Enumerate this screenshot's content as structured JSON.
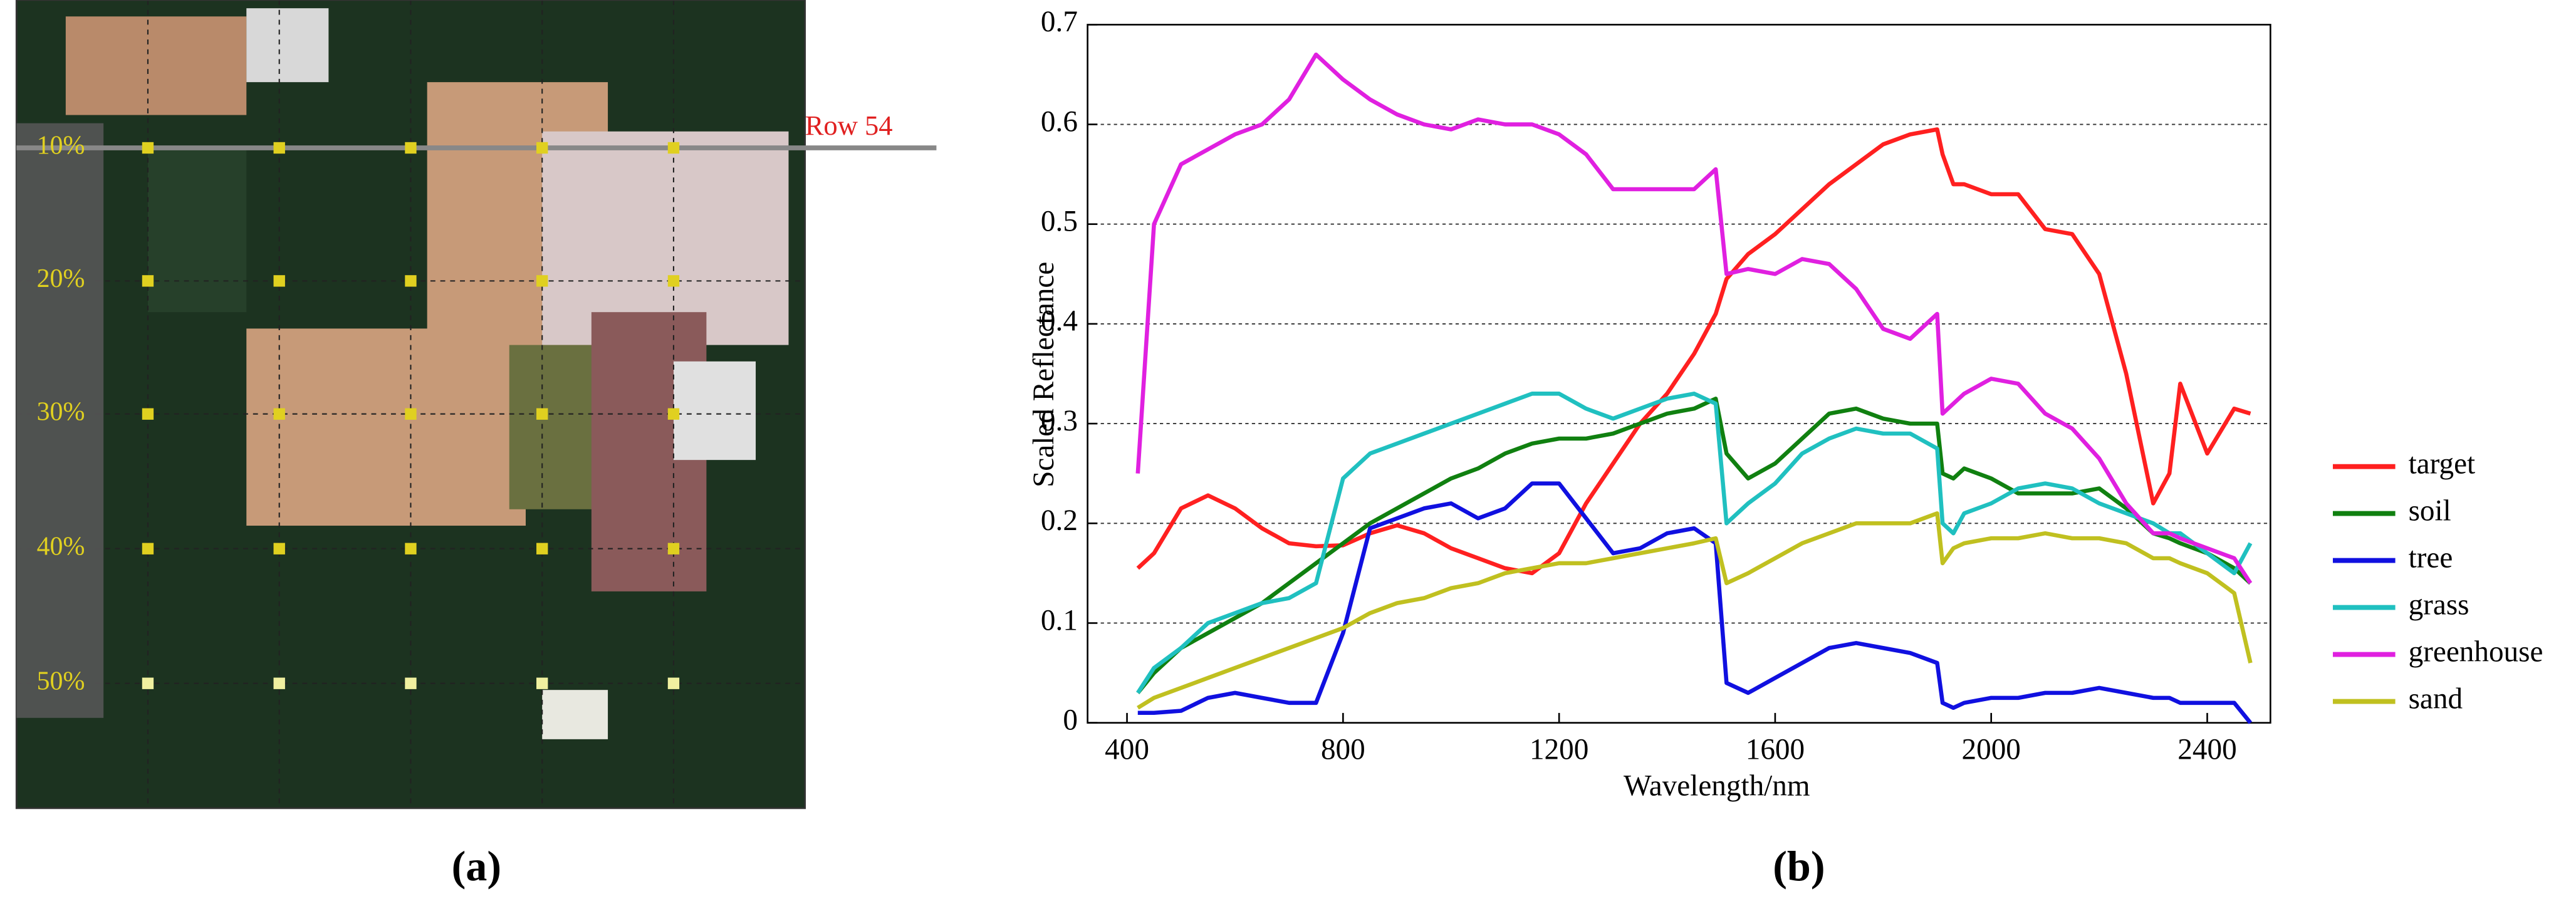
{
  "image_panel": {
    "row_label": "Row 54",
    "percent_labels": [
      "10%",
      "20%",
      "30%",
      "40%",
      "50%"
    ],
    "panel_label": "(a)"
  },
  "chart_data": {
    "type": "line",
    "panel_label": "(b)",
    "xlabel": "Wavelength/nm",
    "ylabel": "Scaled Reflectance",
    "xlim": [
      327,
      2517
    ],
    "xticks": [
      400,
      800,
      1200,
      1600,
      2000,
      2400
    ],
    "ylim": [
      0,
      0.7
    ],
    "yticks": [
      0,
      0.1,
      0.2,
      0.3,
      0.4,
      0.5,
      0.6,
      0.7
    ],
    "grid": true,
    "legend": "outside-right",
    "x": [
      420,
      450,
      500,
      550,
      600,
      650,
      700,
      750,
      800,
      850,
      900,
      950,
      1000,
      1050,
      1100,
      1150,
      1200,
      1250,
      1300,
      1350,
      1400,
      1450,
      1490,
      1510,
      1550,
      1600,
      1650,
      1700,
      1750,
      1800,
      1850,
      1900,
      1910,
      1930,
      1950,
      2000,
      2050,
      2100,
      2150,
      2200,
      2250,
      2300,
      2330,
      2350,
      2400,
      2450,
      2480
    ],
    "series": [
      {
        "name": "target",
        "color": "#ff2020",
        "values": [
          0.155,
          0.17,
          0.215,
          0.228,
          0.215,
          0.195,
          0.18,
          0.177,
          0.178,
          0.19,
          0.198,
          0.19,
          0.175,
          0.165,
          0.155,
          0.15,
          0.17,
          0.22,
          0.26,
          0.3,
          0.33,
          0.37,
          0.41,
          0.445,
          0.47,
          0.49,
          0.515,
          0.54,
          0.56,
          0.58,
          0.59,
          0.595,
          0.57,
          0.54,
          0.54,
          0.53,
          0.53,
          0.495,
          0.49,
          0.45,
          0.35,
          0.22,
          0.25,
          0.34,
          0.27,
          0.315,
          0.31
        ]
      },
      {
        "name": "soil",
        "color": "#108010",
        "values": [
          0.03,
          0.05,
          0.075,
          0.09,
          0.105,
          0.12,
          0.14,
          0.16,
          0.18,
          0.2,
          0.215,
          0.23,
          0.245,
          0.255,
          0.27,
          0.28,
          0.285,
          0.285,
          0.29,
          0.3,
          0.31,
          0.315,
          0.325,
          0.27,
          0.245,
          0.26,
          0.285,
          0.31,
          0.315,
          0.305,
          0.3,
          0.3,
          0.25,
          0.245,
          0.255,
          0.245,
          0.23,
          0.23,
          0.23,
          0.235,
          0.215,
          0.19,
          0.185,
          0.18,
          0.17,
          0.155,
          0.14
        ]
      },
      {
        "name": "tree",
        "color": "#1010e0",
        "values": [
          0.01,
          0.01,
          0.012,
          0.025,
          0.03,
          0.025,
          0.02,
          0.02,
          0.09,
          0.195,
          0.205,
          0.215,
          0.22,
          0.205,
          0.215,
          0.24,
          0.24,
          0.205,
          0.17,
          0.175,
          0.19,
          0.195,
          0.18,
          0.04,
          0.03,
          0.045,
          0.06,
          0.075,
          0.08,
          0.075,
          0.07,
          0.06,
          0.02,
          0.015,
          0.02,
          0.025,
          0.025,
          0.03,
          0.03,
          0.035,
          0.03,
          0.025,
          0.025,
          0.02,
          0.02,
          0.02,
          0.0
        ]
      },
      {
        "name": "grass",
        "color": "#20c0c0",
        "values": [
          0.03,
          0.055,
          0.075,
          0.1,
          0.11,
          0.12,
          0.125,
          0.14,
          0.245,
          0.27,
          0.28,
          0.29,
          0.3,
          0.31,
          0.32,
          0.33,
          0.33,
          0.315,
          0.305,
          0.315,
          0.325,
          0.33,
          0.32,
          0.2,
          0.22,
          0.24,
          0.27,
          0.285,
          0.295,
          0.29,
          0.29,
          0.275,
          0.2,
          0.19,
          0.21,
          0.22,
          0.235,
          0.24,
          0.235,
          0.22,
          0.21,
          0.2,
          0.19,
          0.19,
          0.17,
          0.15,
          0.18
        ]
      },
      {
        "name": "greenhouse",
        "color": "#e020e0",
        "values": [
          0.25,
          0.5,
          0.56,
          0.575,
          0.59,
          0.6,
          0.625,
          0.67,
          0.645,
          0.625,
          0.61,
          0.6,
          0.595,
          0.605,
          0.6,
          0.6,
          0.59,
          0.57,
          0.535,
          0.535,
          0.535,
          0.535,
          0.555,
          0.45,
          0.455,
          0.45,
          0.465,
          0.46,
          0.435,
          0.395,
          0.385,
          0.41,
          0.31,
          0.32,
          0.33,
          0.345,
          0.34,
          0.31,
          0.295,
          0.265,
          0.22,
          0.19,
          0.19,
          0.185,
          0.175,
          0.165,
          0.14
        ]
      },
      {
        "name": "sand",
        "color": "#c0c020",
        "values": [
          0.015,
          0.025,
          0.035,
          0.045,
          0.055,
          0.065,
          0.075,
          0.085,
          0.095,
          0.11,
          0.12,
          0.125,
          0.135,
          0.14,
          0.15,
          0.155,
          0.16,
          0.16,
          0.165,
          0.17,
          0.175,
          0.18,
          0.185,
          0.14,
          0.15,
          0.165,
          0.18,
          0.19,
          0.2,
          0.2,
          0.2,
          0.21,
          0.16,
          0.175,
          0.18,
          0.185,
          0.185,
          0.19,
          0.185,
          0.185,
          0.18,
          0.165,
          0.165,
          0.16,
          0.15,
          0.13,
          0.06
        ]
      }
    ]
  }
}
